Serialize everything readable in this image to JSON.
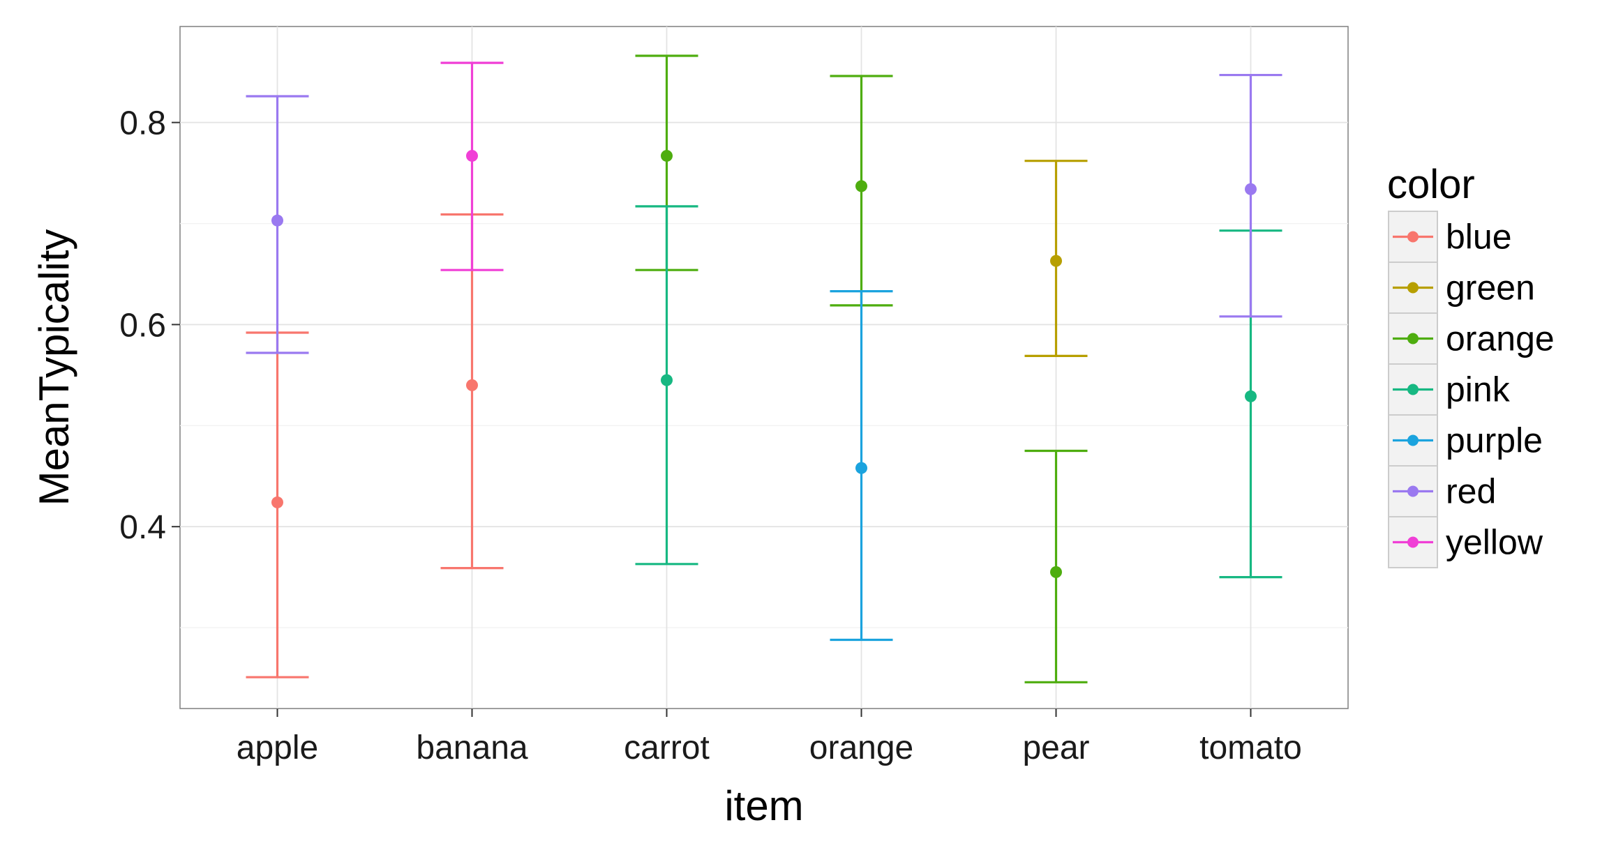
{
  "chart_data": {
    "type": "scatter",
    "title": "",
    "xlabel": "item",
    "ylabel": "MeanTypicality",
    "categories": [
      "apple",
      "banana",
      "carrot",
      "orange",
      "pear",
      "tomato"
    ],
    "ylim": [
      0.22,
      0.895
    ],
    "yticks": [
      0.4,
      0.6,
      0.8
    ],
    "ytick_labels": [
      "0.4",
      "0.6",
      "0.8"
    ],
    "grid": true,
    "legend": {
      "title": "color",
      "position": "right"
    },
    "series": [
      {
        "name": "blue",
        "color": "#F8766D",
        "points": [
          {
            "x": "apple",
            "y": 0.424,
            "ymin": 0.251,
            "ymax": 0.592
          },
          {
            "x": "banana",
            "y": 0.54,
            "ymin": 0.359,
            "ymax": 0.709
          }
        ]
      },
      {
        "name": "green",
        "color": "#B79F00",
        "points": [
          {
            "x": "pear",
            "y": 0.663,
            "ymin": 0.569,
            "ymax": 0.762
          }
        ]
      },
      {
        "name": "orange",
        "color": "#4EAD0F",
        "points": [
          {
            "x": "carrot",
            "y": 0.767,
            "ymin": 0.654,
            "ymax": 0.866
          },
          {
            "x": "orange",
            "y": 0.737,
            "ymin": 0.619,
            "ymax": 0.846
          },
          {
            "x": "pear",
            "y": 0.355,
            "ymin": 0.246,
            "ymax": 0.475
          }
        ]
      },
      {
        "name": "pink",
        "color": "#17B882",
        "points": [
          {
            "x": "carrot",
            "y": 0.545,
            "ymin": 0.363,
            "ymax": 0.717
          },
          {
            "x": "tomato",
            "y": 0.529,
            "ymin": 0.35,
            "ymax": 0.693
          }
        ]
      },
      {
        "name": "purple",
        "color": "#1BA3DE",
        "points": [
          {
            "x": "orange",
            "y": 0.458,
            "ymin": 0.288,
            "ymax": 0.633
          }
        ]
      },
      {
        "name": "red",
        "color": "#9A79F0",
        "points": [
          {
            "x": "apple",
            "y": 0.703,
            "ymin": 0.572,
            "ymax": 0.826
          },
          {
            "x": "tomato",
            "y": 0.734,
            "ymin": 0.608,
            "ymax": 0.847
          }
        ]
      },
      {
        "name": "yellow",
        "color": "#F03FD6",
        "points": [
          {
            "x": "banana",
            "y": 0.767,
            "ymin": 0.654,
            "ymax": 0.859
          }
        ]
      }
    ]
  }
}
